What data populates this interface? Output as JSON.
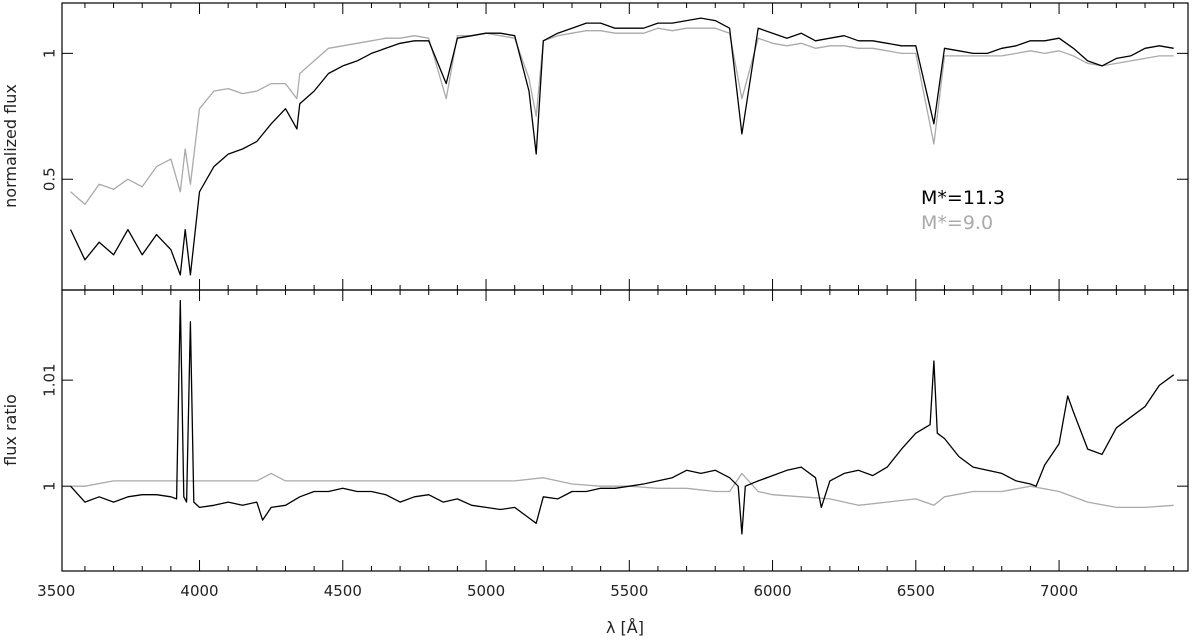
{
  "chart_data": [
    {
      "type": "line",
      "xlim": [
        3520,
        7450
      ],
      "ylim": [
        0.06,
        1.2
      ],
      "xlabel": "λ [Å]",
      "ylabel": "normalized flux",
      "yticks": [
        0.5,
        1
      ],
      "ytick_labels": [
        "0.5",
        "1"
      ],
      "xticks": [
        3500,
        4000,
        4500,
        5000,
        5500,
        6000,
        6500,
        7000
      ],
      "xtick_labels": [
        "3500",
        "4000",
        "4500",
        "5000",
        "5500",
        "6000",
        "6500",
        "7000"
      ],
      "legend_position": "center-right",
      "series": [
        {
          "name": "M*=11.3",
          "color": "#000000",
          "x": [
            3550,
            3600,
            3650,
            3700,
            3750,
            3800,
            3850,
            3900,
            3933,
            3950,
            3968,
            4000,
            4050,
            4100,
            4150,
            4200,
            4250,
            4300,
            4340,
            4350,
            4400,
            4450,
            4500,
            4550,
            4600,
            4650,
            4700,
            4750,
            4800,
            4861,
            4900,
            4950,
            5000,
            5050,
            5100,
            5150,
            5175,
            5200,
            5250,
            5300,
            5350,
            5400,
            5450,
            5500,
            5550,
            5600,
            5650,
            5700,
            5750,
            5800,
            5850,
            5893,
            5950,
            6000,
            6050,
            6100,
            6150,
            6200,
            6250,
            6300,
            6350,
            6400,
            6450,
            6500,
            6563,
            6600,
            6650,
            6700,
            6750,
            6800,
            6850,
            6900,
            6950,
            7000,
            7050,
            7100,
            7150,
            7200,
            7250,
            7300,
            7350,
            7400
          ],
          "y": [
            0.3,
            0.18,
            0.25,
            0.2,
            0.3,
            0.2,
            0.28,
            0.22,
            0.12,
            0.3,
            0.12,
            0.45,
            0.55,
            0.6,
            0.62,
            0.65,
            0.72,
            0.78,
            0.7,
            0.8,
            0.85,
            0.92,
            0.95,
            0.97,
            1.0,
            1.02,
            1.04,
            1.05,
            1.05,
            0.88,
            1.06,
            1.07,
            1.08,
            1.08,
            1.07,
            0.85,
            0.6,
            1.05,
            1.08,
            1.1,
            1.12,
            1.12,
            1.1,
            1.1,
            1.1,
            1.12,
            1.12,
            1.13,
            1.14,
            1.13,
            1.1,
            0.68,
            1.1,
            1.08,
            1.06,
            1.08,
            1.05,
            1.06,
            1.07,
            1.05,
            1.05,
            1.04,
            1.03,
            1.03,
            0.72,
            1.02,
            1.01,
            1.0,
            1.0,
            1.02,
            1.03,
            1.05,
            1.05,
            1.06,
            1.02,
            0.97,
            0.95,
            0.98,
            0.99,
            1.02,
            1.03,
            1.02
          ]
        },
        {
          "name": "M*=9.0",
          "color": "#aaaaaa",
          "x": [
            3550,
            3600,
            3650,
            3700,
            3750,
            3800,
            3850,
            3900,
            3933,
            3950,
            3968,
            4000,
            4050,
            4100,
            4150,
            4200,
            4250,
            4300,
            4340,
            4350,
            4400,
            4450,
            4500,
            4550,
            4600,
            4650,
            4700,
            4750,
            4800,
            4861,
            4900,
            4950,
            5000,
            5050,
            5100,
            5150,
            5175,
            5200,
            5250,
            5300,
            5350,
            5400,
            5450,
            5500,
            5550,
            5600,
            5650,
            5700,
            5750,
            5800,
            5850,
            5893,
            5950,
            6000,
            6050,
            6100,
            6150,
            6200,
            6250,
            6300,
            6350,
            6400,
            6450,
            6500,
            6563,
            6600,
            6650,
            6700,
            6750,
            6800,
            6850,
            6900,
            6950,
            7000,
            7050,
            7100,
            7150,
            7200,
            7250,
            7300,
            7350,
            7400
          ],
          "y": [
            0.45,
            0.4,
            0.48,
            0.46,
            0.5,
            0.47,
            0.55,
            0.58,
            0.45,
            0.62,
            0.48,
            0.78,
            0.85,
            0.86,
            0.84,
            0.85,
            0.88,
            0.88,
            0.82,
            0.92,
            0.97,
            1.02,
            1.03,
            1.04,
            1.05,
            1.06,
            1.06,
            1.07,
            1.06,
            0.82,
            1.07,
            1.07,
            1.08,
            1.07,
            1.06,
            0.9,
            0.75,
            1.05,
            1.07,
            1.08,
            1.09,
            1.09,
            1.08,
            1.08,
            1.08,
            1.1,
            1.09,
            1.1,
            1.1,
            1.1,
            1.08,
            0.82,
            1.06,
            1.04,
            1.03,
            1.04,
            1.02,
            1.03,
            1.03,
            1.02,
            1.02,
            1.01,
            1.0,
            1.0,
            0.64,
            0.99,
            0.99,
            0.99,
            0.99,
            0.99,
            1.0,
            1.01,
            1.0,
            1.01,
            0.99,
            0.96,
            0.95,
            0.96,
            0.97,
            0.98,
            0.99,
            0.99
          ]
        }
      ]
    },
    {
      "type": "line",
      "xlim": [
        3520,
        7450
      ],
      "ylim": [
        0.992,
        1.0185
      ],
      "xlabel": "λ [Å]",
      "ylabel": "flux ratio",
      "yticks": [
        1.0,
        1.01
      ],
      "ytick_labels": [
        "1",
        "1.01"
      ],
      "xticks": [
        3500,
        4000,
        4500,
        5000,
        5500,
        6000,
        6500,
        7000
      ],
      "xtick_labels": [
        "3500",
        "4000",
        "4500",
        "5000",
        "5500",
        "6000",
        "6500",
        "7000"
      ],
      "series": [
        {
          "color": "#000000",
          "x": [
            3550,
            3600,
            3650,
            3700,
            3750,
            3800,
            3850,
            3900,
            3920,
            3933,
            3945,
            3955,
            3968,
            3980,
            4000,
            4050,
            4100,
            4150,
            4200,
            4220,
            4250,
            4300,
            4350,
            4400,
            4450,
            4500,
            4550,
            4600,
            4650,
            4700,
            4750,
            4800,
            4850,
            4900,
            4950,
            5000,
            5050,
            5100,
            5150,
            5175,
            5200,
            5250,
            5300,
            5350,
            5400,
            5450,
            5500,
            5550,
            5600,
            5650,
            5700,
            5750,
            5800,
            5850,
            5880,
            5893,
            5905,
            5950,
            6000,
            6050,
            6100,
            6150,
            6170,
            6200,
            6250,
            6300,
            6350,
            6400,
            6450,
            6500,
            6550,
            6563,
            6575,
            6600,
            6650,
            6700,
            6750,
            6800,
            6850,
            6900,
            6920,
            6950,
            7000,
            7030,
            7050,
            7100,
            7150,
            7200,
            7250,
            7300,
            7350,
            7400
          ],
          "y": [
            1.0,
            0.9985,
            0.999,
            0.9985,
            0.999,
            0.9992,
            0.9992,
            0.999,
            0.9988,
            1.0175,
            0.999,
            0.9985,
            1.0155,
            0.9985,
            0.998,
            0.9982,
            0.9985,
            0.9982,
            0.9985,
            0.9968,
            0.998,
            0.9982,
            0.999,
            0.9995,
            0.9995,
            0.9998,
            0.9995,
            0.9995,
            0.9992,
            0.9985,
            0.999,
            0.9992,
            0.9985,
            0.9988,
            0.9982,
            0.998,
            0.9978,
            0.998,
            0.997,
            0.9965,
            0.999,
            0.9988,
            0.9995,
            0.9995,
            0.9998,
            0.9998,
            1.0,
            1.0002,
            1.0005,
            1.0008,
            1.0015,
            1.0012,
            1.0015,
            1.0008,
            1.0,
            0.9955,
            1.0,
            1.0005,
            1.001,
            1.0015,
            1.0018,
            1.0008,
            0.998,
            1.0005,
            1.0012,
            1.0015,
            1.001,
            1.0018,
            1.0035,
            1.005,
            1.0058,
            1.0118,
            1.005,
            1.0045,
            1.0028,
            1.0018,
            1.0015,
            1.0012,
            1.0005,
            1.0002,
            1.0,
            1.002,
            1.004,
            1.0085,
            1.007,
            1.0035,
            1.003,
            1.0055,
            1.0065,
            1.0075,
            1.0095,
            1.0105
          ]
        },
        {
          "color": "#aaaaaa",
          "x": [
            3550,
            3600,
            3700,
            3800,
            3900,
            4000,
            4100,
            4200,
            4250,
            4300,
            4400,
            4500,
            4600,
            4700,
            4800,
            4900,
            5000,
            5100,
            5200,
            5300,
            5400,
            5500,
            5600,
            5700,
            5800,
            5850,
            5893,
            5950,
            6000,
            6100,
            6200,
            6300,
            6400,
            6500,
            6563,
            6600,
            6700,
            6800,
            6900,
            7000,
            7100,
            7200,
            7300,
            7400
          ],
          "y": [
            1.0,
            1.0,
            1.0005,
            1.0005,
            1.0005,
            1.0005,
            1.0005,
            1.0005,
            1.0012,
            1.0005,
            1.0005,
            1.0005,
            1.0005,
            1.0005,
            1.0005,
            1.0005,
            1.0005,
            1.0005,
            1.0008,
            1.0002,
            1.0,
            1.0,
            0.9998,
            0.9998,
            0.9995,
            0.9995,
            1.0012,
            0.9995,
            0.9992,
            0.999,
            0.9988,
            0.9982,
            0.9985,
            0.9988,
            0.9982,
            0.999,
            0.9995,
            0.9995,
            1.0,
            0.9995,
            0.9985,
            0.998,
            0.998,
            0.9982
          ]
        }
      ]
    }
  ]
}
